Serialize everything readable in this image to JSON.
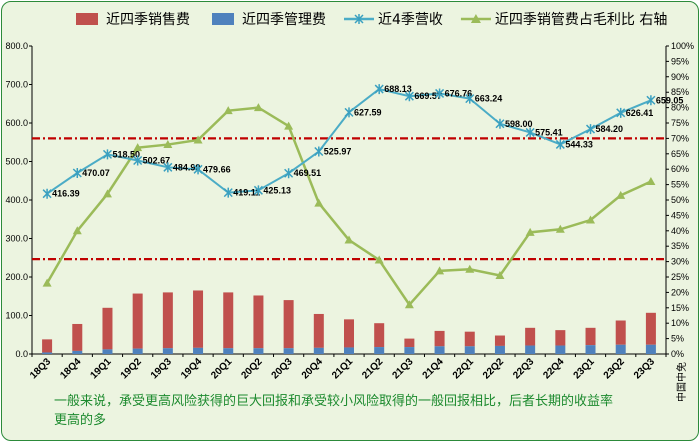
{
  "chart_data": {
    "type": "bar",
    "categories": [
      "18Q3",
      "18Q4",
      "19Q1",
      "19Q2",
      "19Q3",
      "19Q4",
      "20Q1",
      "20Q2",
      "20Q3",
      "20Q4",
      "21Q1",
      "21Q2",
      "21Q3",
      "21Q4",
      "22Q1",
      "22Q2",
      "22Q3",
      "22Q4",
      "23Q1",
      "23Q2",
      "23Q3"
    ],
    "xlabel": "中国中免",
    "ylim": [
      0,
      800
    ],
    "y_ticks": [
      "0.0",
      "100.0",
      "200.0",
      "300.0",
      "400.0",
      "500.0",
      "600.0",
      "700.0",
      "800.0"
    ],
    "y2lim": [
      0,
      100
    ],
    "y2_ticks": [
      "0%",
      "5%",
      "10%",
      "15%",
      "20%",
      "25%",
      "30%",
      "35%",
      "40%",
      "45%",
      "50%",
      "55%",
      "60%",
      "65%",
      "70%",
      "75%",
      "80%",
      "85%",
      "90%",
      "95%",
      "100%"
    ],
    "series": [
      {
        "name": "近四季销售费",
        "type": "bar",
        "color": "#c0504d",
        "values": [
          38,
          78,
          120,
          157,
          160,
          165,
          160,
          152,
          140,
          104,
          90,
          80,
          40,
          60,
          58,
          48,
          68,
          62,
          68,
          87,
          107
        ]
      },
      {
        "name": "近四季管理费",
        "type": "bar",
        "color": "#4f81bd",
        "values": [
          4,
          8,
          12,
          14,
          15,
          16,
          15,
          15,
          15,
          16,
          17,
          18,
          18,
          20,
          20,
          21,
          22,
          22,
          23,
          24,
          24
        ]
      },
      {
        "name": "近4季营收",
        "type": "line",
        "color": "#4bacc6",
        "marker": "star",
        "values": [
          416.39,
          470.07,
          518.5,
          502.67,
          484.9,
          479.66,
          419.11,
          425.13,
          469.51,
          525.97,
          627.59,
          688.13,
          669.57,
          676.76,
          663.24,
          598.0,
          575.41,
          544.33,
          584.2,
          626.41,
          659.05
        ],
        "labels": [
          "416.39",
          "470.07",
          "518.50",
          "502.67",
          "484.90",
          "479.66",
          "419.11",
          "425.13",
          "469.51",
          "525.97",
          "627.59",
          "688.13",
          "669.57",
          "676.76",
          "663.24",
          "598.00",
          "575.41",
          "544.33",
          "584.20",
          "626.41",
          "659.05"
        ]
      },
      {
        "name": "近四季销管费占毛利比 右轴",
        "type": "line",
        "axis": "right",
        "color": "#9bbb59",
        "marker": "triangle",
        "values": [
          23,
          40,
          52,
          67,
          68,
          69.5,
          79,
          80,
          74,
          49,
          37,
          30.5,
          16,
          27,
          27.5,
          25.5,
          39.5,
          40.5,
          43.5,
          51.5,
          56
        ]
      }
    ],
    "reference_lines": [
      {
        "axis": "right",
        "value": 70,
        "color": "#c00000",
        "style": "dash-dot"
      },
      {
        "axis": "right",
        "value": 30.8,
        "color": "#c00000",
        "style": "dash-dot"
      }
    ],
    "grid": false,
    "legend": "top"
  },
  "caption": "一般来说，承受更高风险获得的巨大回报和承受较小风险取得的一般回报相比，后者长期的收益率更高的多",
  "colors": {
    "background": "#ecf4e0",
    "border": "#2c8a3a",
    "caption": "#1c8a2e",
    "axis": "#000000"
  }
}
